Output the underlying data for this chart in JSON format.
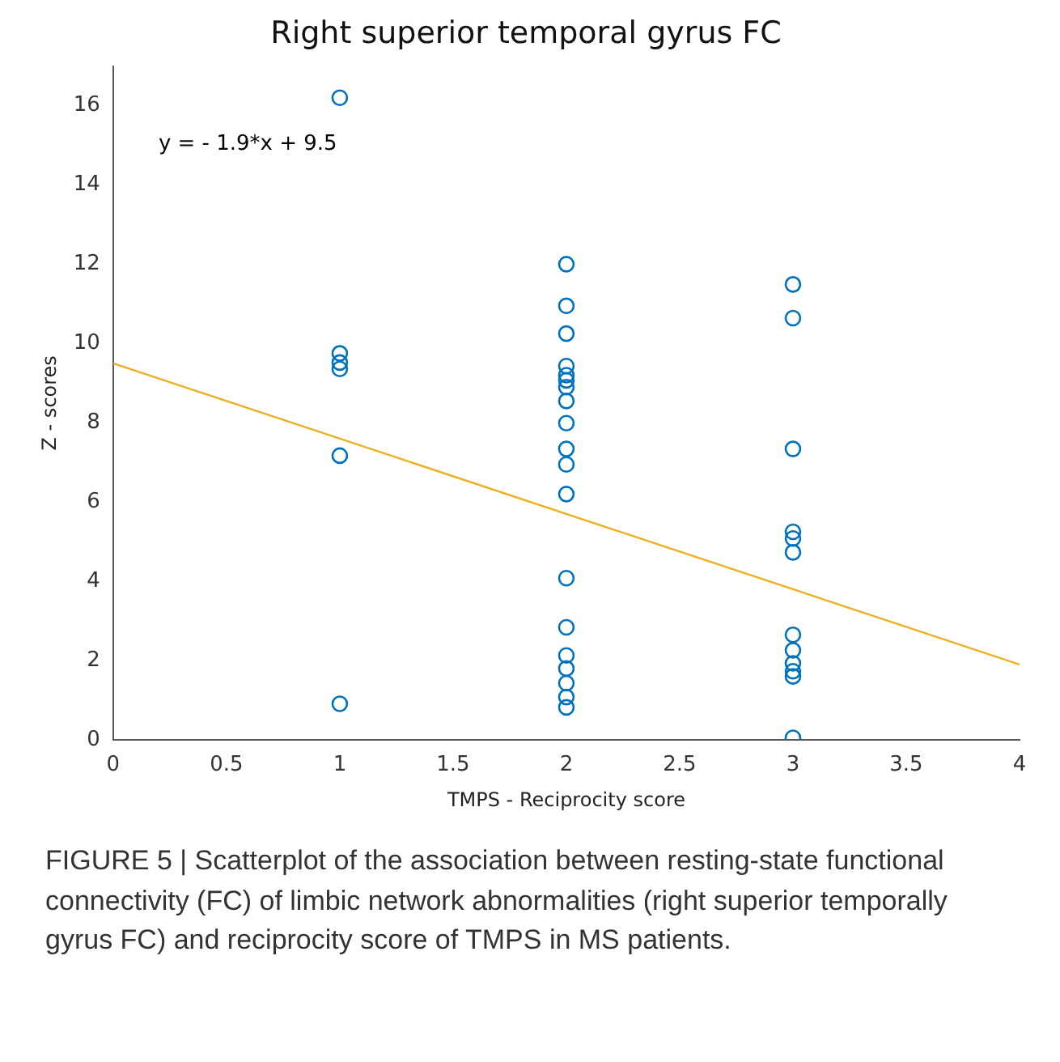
{
  "chart_data": {
    "type": "scatter",
    "title": "Right superior temporal gyrus FC",
    "xlabel": "TMPS - Reciprocity score",
    "ylabel": "Z - scores",
    "annotations": [
      "y = - 1.9*x + 9.5",
      "FIGURE 5 | Scatterplot of the association between resting-state functional connectivity (FC) of limbic network abnormalities (right superior temporally gyrus FC) and reciprocity score of TMPS in MS patients."
    ],
    "xlim": [
      0,
      4
    ],
    "xticks": [
      0,
      0.5,
      1,
      1.5,
      2,
      2.5,
      3,
      3.5,
      4
    ],
    "ylim": [
      0,
      17
    ],
    "yticks": [
      0,
      2,
      4,
      6,
      8,
      10,
      12,
      14,
      16
    ],
    "grid": false,
    "legend": false,
    "marker": "circle",
    "series": [
      {
        "color": "#0072bd",
        "x": [
          1,
          1,
          1,
          1,
          1,
          1,
          2,
          2,
          2,
          2,
          2,
          2,
          2,
          2,
          2,
          2,
          2,
          2,
          2,
          2,
          2,
          2,
          2,
          2,
          2,
          3,
          3,
          3,
          3,
          3,
          3,
          3,
          3,
          3,
          3,
          3,
          3
        ],
        "values": [
          16.2,
          9.75,
          9.52,
          9.36,
          7.17,
          0.91,
          12.0,
          10.95,
          10.25,
          9.43,
          9.2,
          9.07,
          8.9,
          8.55,
          7.99,
          7.34,
          6.95,
          6.2,
          4.08,
          2.84,
          2.13,
          1.8,
          1.43,
          1.08,
          0.82,
          11.49,
          10.64,
          7.34,
          5.25,
          5.08,
          4.73,
          2.65,
          2.26,
          1.93,
          1.73,
          1.6,
          0.05
        ]
      },
      {
        "type": "line",
        "color": "#edb120",
        "marker": "none",
        "x": [
          0,
          4
        ],
        "values": [
          9.5,
          1.9
        ]
      }
    ]
  }
}
